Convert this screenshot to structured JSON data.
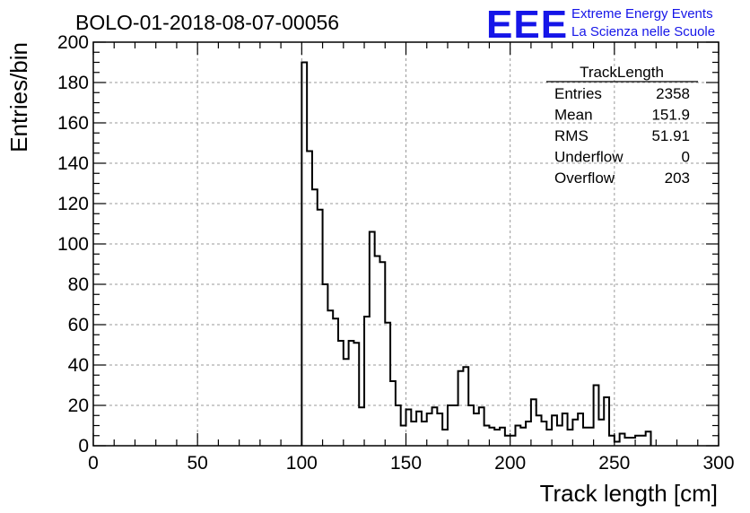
{
  "chart_data": {
    "type": "bar",
    "title": "BOLO-01-2018-08-07-00056",
    "xlabel": "Track length [cm]",
    "ylabel": "Entries/bin",
    "xlim": [
      0,
      300
    ],
    "ylim": [
      0,
      200
    ],
    "x_ticks": [
      0,
      50,
      100,
      150,
      200,
      250,
      300
    ],
    "y_ticks": [
      0,
      20,
      40,
      60,
      80,
      100,
      120,
      140,
      160,
      180,
      200
    ],
    "grid": true,
    "bin_width": 2.5,
    "x_start": 100,
    "values": [
      190,
      146,
      127,
      117,
      80,
      67,
      63,
      52,
      43,
      52,
      51,
      19,
      64,
      106,
      94,
      91,
      61,
      32,
      20,
      10,
      18,
      12,
      17,
      12,
      16,
      19,
      16,
      8,
      20,
      20,
      37,
      39,
      20,
      16,
      19,
      10,
      9,
      8,
      9,
      5,
      5,
      10,
      9,
      12,
      23,
      15,
      12,
      8,
      15,
      10,
      16,
      8,
      13,
      16,
      9,
      9,
      30,
      13,
      24,
      5,
      2,
      6,
      4,
      4,
      5,
      5,
      7
    ],
    "stats_box": {
      "name": "TrackLength",
      "rows": [
        {
          "label": "Entries",
          "value": "2358"
        },
        {
          "label": "Mean",
          "value": "151.9"
        },
        {
          "label": "RMS",
          "value": "51.91"
        },
        {
          "label": "Underflow",
          "value": "0"
        },
        {
          "label": "Overflow",
          "value": "203"
        }
      ]
    }
  },
  "logo": {
    "letters": "EEE",
    "line1": "Extreme Energy Events",
    "line2": "La Scienza nelle Scuole",
    "color": "#1515e8"
  }
}
